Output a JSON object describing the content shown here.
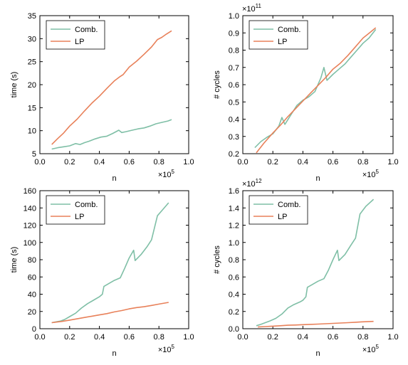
{
  "colors": {
    "comb": "#7fbfa6",
    "lp": "#e8815a",
    "axis": "#000000",
    "background": "#ffffff"
  },
  "chart_data": [
    {
      "type": "line",
      "xlabel": "n",
      "ylabel": "time (s)",
      "x_multiplier_label": "×10",
      "x_multiplier_exp": "5",
      "y_multiplier_label": "",
      "y_multiplier_exp": "",
      "xlim": [
        0.0,
        1.0
      ],
      "ylim": [
        5,
        35
      ],
      "xticks": [
        "0.0",
        "0.2",
        "0.4",
        "0.6",
        "0.8",
        "1.0"
      ],
      "xtick_values": [
        0.0,
        0.2,
        0.4,
        0.6,
        0.8,
        1.0
      ],
      "yticks": [
        "5",
        "10",
        "15",
        "20",
        "25",
        "30",
        "35"
      ],
      "ytick_values": [
        5,
        10,
        15,
        20,
        25,
        30,
        35
      ],
      "legend": {
        "position": "top-left",
        "entries": [
          "Comb.",
          "LP"
        ]
      },
      "series": [
        {
          "name": "Comb.",
          "x": [
            0.08,
            0.12,
            0.16,
            0.2,
            0.24,
            0.27,
            0.3,
            0.33,
            0.37,
            0.41,
            0.45,
            0.49,
            0.53,
            0.55,
            0.58,
            0.62,
            0.66,
            0.7,
            0.74,
            0.78,
            0.82,
            0.86,
            0.885
          ],
          "y": [
            6.0,
            6.3,
            6.5,
            6.7,
            7.2,
            7.0,
            7.4,
            7.7,
            8.2,
            8.6,
            8.8,
            9.4,
            10.1,
            9.6,
            9.8,
            10.1,
            10.4,
            10.6,
            11.0,
            11.5,
            11.8,
            12.1,
            12.4
          ]
        },
        {
          "name": "LP",
          "x": [
            0.08,
            0.12,
            0.16,
            0.2,
            0.25,
            0.3,
            0.35,
            0.4,
            0.45,
            0.5,
            0.54,
            0.56,
            0.6,
            0.65,
            0.7,
            0.75,
            0.79,
            0.82,
            0.85,
            0.885
          ],
          "y": [
            7.0,
            8.3,
            9.5,
            11.0,
            12.5,
            14.3,
            16.0,
            17.5,
            19.2,
            20.8,
            21.8,
            22.2,
            23.8,
            25.1,
            26.6,
            28.2,
            29.8,
            30.3,
            31.0,
            31.7
          ]
        }
      ]
    },
    {
      "type": "line",
      "xlabel": "n",
      "ylabel": "# cycles",
      "x_multiplier_label": "×10",
      "x_multiplier_exp": "5",
      "y_multiplier_label": "×10",
      "y_multiplier_exp": "11",
      "xlim": [
        0.0,
        1.0
      ],
      "ylim": [
        0.2,
        1.0
      ],
      "xticks": [
        "0.0",
        "0.2",
        "0.4",
        "0.6",
        "0.8",
        "1.0"
      ],
      "xtick_values": [
        0.0,
        0.2,
        0.4,
        0.6,
        0.8,
        1.0
      ],
      "yticks": [
        "0.2",
        "0.3",
        "0.4",
        "0.5",
        "0.6",
        "0.7",
        "0.8",
        "0.9",
        "1.0"
      ],
      "ytick_values": [
        0.2,
        0.3,
        0.4,
        0.5,
        0.6,
        0.7,
        0.8,
        0.9,
        1.0
      ],
      "legend": {
        "position": "top-left",
        "entries": [
          "Comb.",
          "LP"
        ]
      },
      "series": [
        {
          "name": "Comb.",
          "x": [
            0.08,
            0.12,
            0.16,
            0.2,
            0.24,
            0.26,
            0.28,
            0.32,
            0.36,
            0.4,
            0.44,
            0.48,
            0.52,
            0.54,
            0.56,
            0.6,
            0.64,
            0.68,
            0.72,
            0.76,
            0.8,
            0.84,
            0.885
          ],
          "y": [
            0.235,
            0.27,
            0.295,
            0.315,
            0.36,
            0.41,
            0.37,
            0.425,
            0.48,
            0.51,
            0.53,
            0.56,
            0.64,
            0.7,
            0.625,
            0.66,
            0.69,
            0.72,
            0.76,
            0.8,
            0.84,
            0.87,
            0.92
          ]
        },
        {
          "name": "LP",
          "x": [
            0.09,
            0.14,
            0.2,
            0.25,
            0.3,
            0.35,
            0.4,
            0.45,
            0.5,
            0.55,
            0.6,
            0.65,
            0.7,
            0.75,
            0.8,
            0.85,
            0.885
          ],
          "y": [
            0.205,
            0.26,
            0.32,
            0.365,
            0.415,
            0.46,
            0.505,
            0.55,
            0.595,
            0.64,
            0.69,
            0.725,
            0.77,
            0.82,
            0.87,
            0.905,
            0.93
          ]
        }
      ]
    },
    {
      "type": "line",
      "xlabel": "n",
      "ylabel": "time (s)",
      "x_multiplier_label": "×10",
      "x_multiplier_exp": "5",
      "y_multiplier_label": "",
      "y_multiplier_exp": "",
      "xlim": [
        0.0,
        1.0
      ],
      "ylim": [
        0,
        160
      ],
      "xticks": [
        "0.0",
        "0.2",
        "0.4",
        "0.6",
        "0.8",
        "1.0"
      ],
      "xtick_values": [
        0.0,
        0.2,
        0.4,
        0.6,
        0.8,
        1.0
      ],
      "yticks": [
        "0",
        "20",
        "40",
        "60",
        "80",
        "100",
        "120",
        "140",
        "160"
      ],
      "ytick_values": [
        0,
        20,
        40,
        60,
        80,
        100,
        120,
        140,
        160
      ],
      "legend": {
        "position": "top-left",
        "entries": [
          "Comb.",
          "LP"
        ]
      },
      "series": [
        {
          "name": "Comb.",
          "x": [
            0.08,
            0.11,
            0.14,
            0.17,
            0.2,
            0.24,
            0.28,
            0.32,
            0.36,
            0.4,
            0.42,
            0.43,
            0.46,
            0.5,
            0.54,
            0.57,
            0.6,
            0.63,
            0.64,
            0.68,
            0.72,
            0.75,
            0.79,
            0.83,
            0.865
          ],
          "y": [
            7,
            8,
            9,
            11,
            14,
            18,
            24,
            29,
            33,
            37,
            40,
            49,
            52,
            56,
            59,
            70,
            82,
            91,
            79,
            86,
            95,
            103,
            131,
            139,
            146
          ]
        },
        {
          "name": "LP",
          "x": [
            0.08,
            0.15,
            0.2,
            0.25,
            0.3,
            0.35,
            0.4,
            0.45,
            0.5,
            0.55,
            0.6,
            0.65,
            0.7,
            0.75,
            0.8,
            0.865
          ],
          "y": [
            7,
            8.5,
            10,
            11.5,
            13,
            14.5,
            16,
            17.5,
            19.5,
            21,
            23,
            24.5,
            25.5,
            27,
            28.5,
            30.5
          ]
        }
      ]
    },
    {
      "type": "line",
      "xlabel": "n",
      "ylabel": "# cycles",
      "x_multiplier_label": "×10",
      "x_multiplier_exp": "5",
      "y_multiplier_label": "×10",
      "y_multiplier_exp": "12",
      "xlim": [
        0.0,
        1.0
      ],
      "ylim": [
        0.0,
        1.6
      ],
      "xticks": [
        "0.0",
        "0.2",
        "0.4",
        "0.6",
        "0.8",
        "1.0"
      ],
      "xtick_values": [
        0.0,
        0.2,
        0.4,
        0.6,
        0.8,
        1.0
      ],
      "yticks": [
        "0.0",
        "0.2",
        "0.4",
        "0.6",
        "0.8",
        "1.0",
        "1.2",
        "1.4",
        "1.6"
      ],
      "ytick_values": [
        0.0,
        0.2,
        0.4,
        0.6,
        0.8,
        1.0,
        1.2,
        1.4,
        1.6
      ],
      "legend": {
        "position": "top-left",
        "entries": [
          "Comb.",
          "LP"
        ]
      },
      "series": [
        {
          "name": "Comb.",
          "x": [
            0.09,
            0.12,
            0.15,
            0.18,
            0.22,
            0.26,
            0.3,
            0.34,
            0.38,
            0.4,
            0.42,
            0.43,
            0.46,
            0.5,
            0.54,
            0.57,
            0.6,
            0.63,
            0.64,
            0.68,
            0.72,
            0.75,
            0.78,
            0.82,
            0.87
          ],
          "y": [
            0.035,
            0.05,
            0.07,
            0.09,
            0.12,
            0.17,
            0.24,
            0.28,
            0.31,
            0.33,
            0.37,
            0.48,
            0.51,
            0.55,
            0.58,
            0.68,
            0.8,
            0.91,
            0.79,
            0.86,
            0.97,
            1.05,
            1.33,
            1.42,
            1.5
          ]
        },
        {
          "name": "LP",
          "x": [
            0.1,
            0.15,
            0.2,
            0.25,
            0.3,
            0.35,
            0.4,
            0.45,
            0.5,
            0.55,
            0.6,
            0.65,
            0.7,
            0.75,
            0.8,
            0.87
          ],
          "y": [
            0.02,
            0.025,
            0.03,
            0.035,
            0.04,
            0.043,
            0.047,
            0.05,
            0.054,
            0.058,
            0.062,
            0.066,
            0.07,
            0.075,
            0.08,
            0.085
          ]
        }
      ]
    }
  ]
}
